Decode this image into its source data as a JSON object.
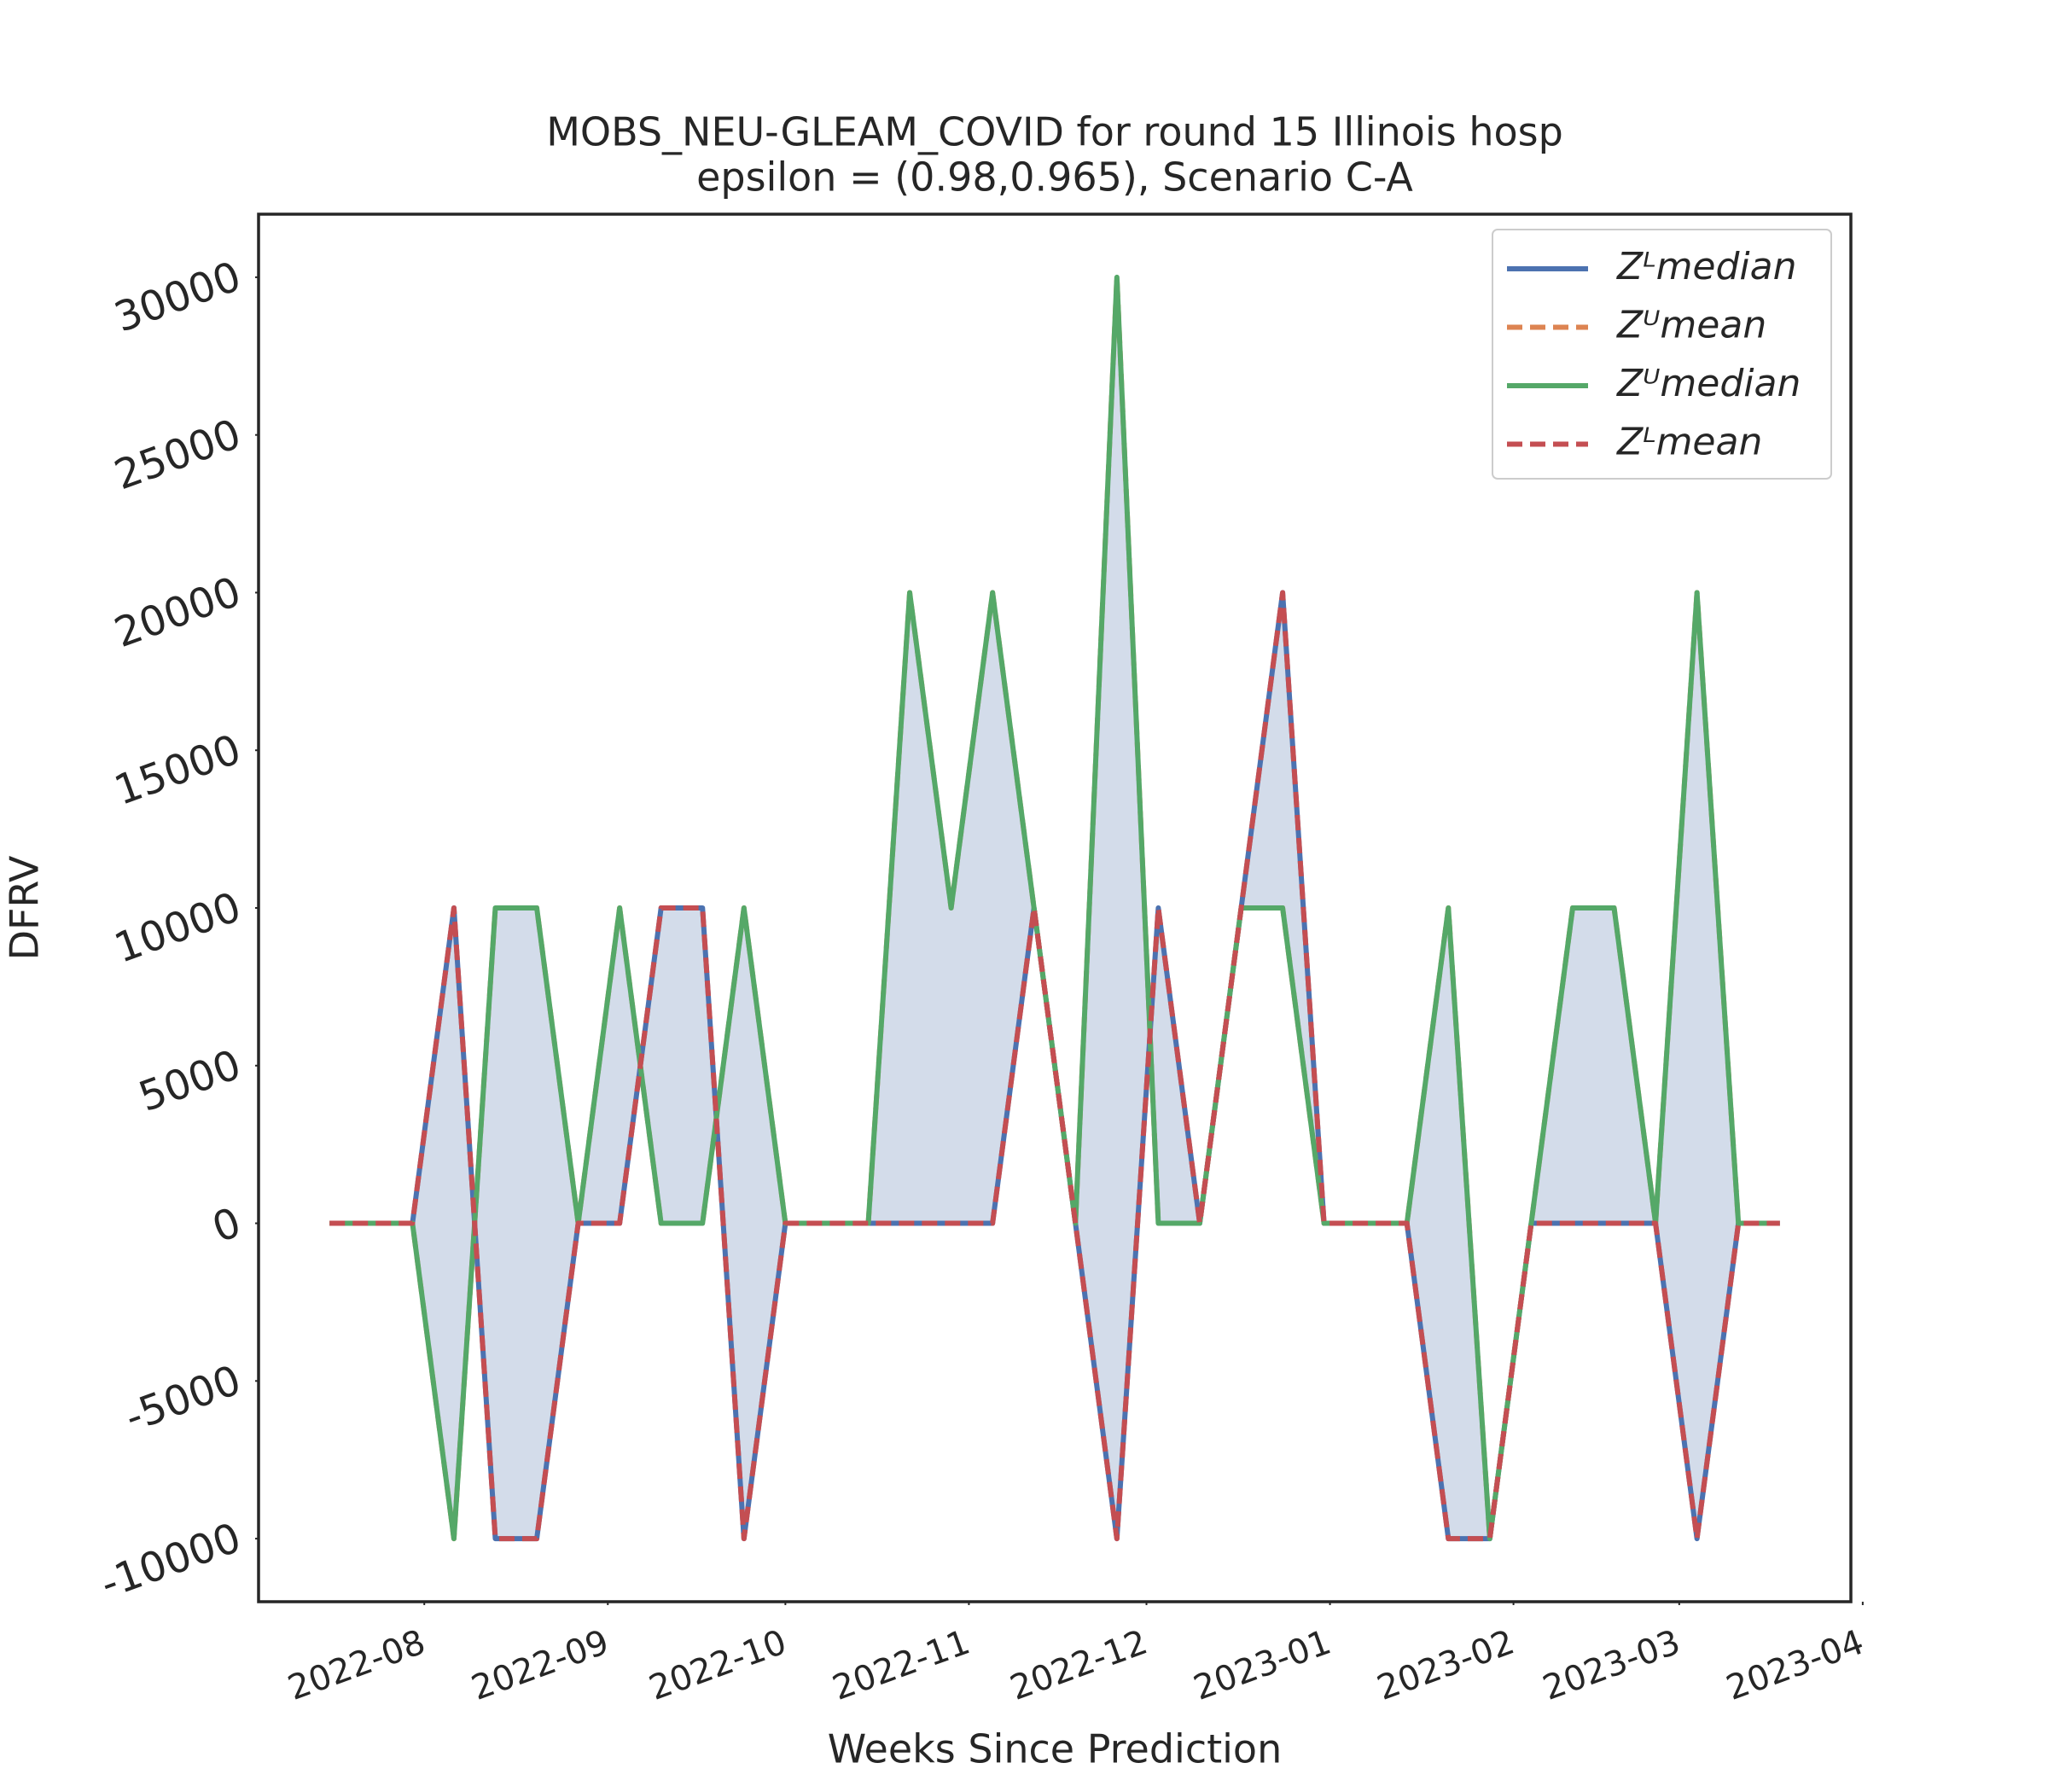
{
  "chart_data": {
    "type": "line",
    "title": "MOBS_NEU-GLEAM_COVID for round 15 Illinois  hosp",
    "subtitle": "epsilon = (0.98,0.965), Scenario C-A",
    "x_label": "Weeks Since Prediction",
    "y_label": "DFRV",
    "x": [
      "2022-07-16",
      "2022-07-23",
      "2022-07-30",
      "2022-08-06",
      "2022-08-13",
      "2022-08-20",
      "2022-08-27",
      "2022-09-03",
      "2022-09-10",
      "2022-09-17",
      "2022-09-24",
      "2022-10-01",
      "2022-10-08",
      "2022-10-15",
      "2022-10-22",
      "2022-10-29",
      "2022-11-05",
      "2022-11-12",
      "2022-11-19",
      "2022-11-26",
      "2022-12-03",
      "2022-12-10",
      "2022-12-17",
      "2022-12-24",
      "2022-12-31",
      "2023-01-07",
      "2023-01-14",
      "2023-01-21",
      "2023-01-28",
      "2023-02-04",
      "2023-02-11",
      "2023-02-18",
      "2023-02-25",
      "2023-03-04",
      "2023-03-11",
      "2023-03-18"
    ],
    "series": [
      {
        "name": "Zᴸmedian",
        "color": "#4c72b0",
        "dashed": false,
        "values": [
          0,
          0,
          0,
          10000,
          -10000,
          -10000,
          0,
          0,
          10000,
          10000,
          -10000,
          0,
          0,
          0,
          0,
          0,
          0,
          10000,
          0,
          -10000,
          10000,
          0,
          10000,
          20000,
          0,
          0,
          0,
          -10000,
          -10000,
          0,
          0,
          0,
          0,
          -10000,
          0,
          0
        ]
      },
      {
        "name": "Zᵁmean",
        "color": "#dd8452",
        "dashed": true,
        "values": [
          0,
          0,
          0,
          -10000,
          10000,
          10000,
          0,
          10000,
          0,
          0,
          10000,
          0,
          0,
          0,
          20000,
          10000,
          20000,
          10000,
          0,
          30000,
          0,
          0,
          10000,
          10000,
          0,
          0,
          0,
          10000,
          -10000,
          0,
          10000,
          10000,
          0,
          20000,
          0,
          0
        ]
      },
      {
        "name": "Zᵁmedian",
        "color": "#55a868",
        "dashed": false,
        "values": [
          0,
          0,
          0,
          -10000,
          10000,
          10000,
          0,
          10000,
          0,
          0,
          10000,
          0,
          0,
          0,
          20000,
          10000,
          20000,
          10000,
          0,
          30000,
          0,
          0,
          10000,
          10000,
          0,
          0,
          0,
          10000,
          -10000,
          0,
          10000,
          10000,
          0,
          20000,
          0,
          0
        ]
      },
      {
        "name": "Zᴸmean",
        "color": "#c44e52",
        "dashed": true,
        "values": [
          0,
          0,
          0,
          10000,
          -10000,
          -10000,
          0,
          0,
          10000,
          10000,
          -10000,
          0,
          0,
          0,
          0,
          0,
          0,
          10000,
          0,
          -10000,
          10000,
          0,
          10000,
          20000,
          0,
          0,
          0,
          -10000,
          -10000,
          0,
          0,
          0,
          0,
          -10000,
          0,
          0
        ]
      }
    ],
    "fill_color": "#d3dcea",
    "xlim": [
      "2022-07-04",
      "2023-03-30"
    ],
    "xticks": [
      "2022-08",
      "2022-09",
      "2022-10",
      "2022-11",
      "2022-12",
      "2023-01",
      "2023-02",
      "2023-03",
      "2023-04"
    ],
    "ylim": [
      -12000,
      32000
    ],
    "yticks": [
      -10000,
      -5000,
      0,
      5000,
      10000,
      15000,
      20000,
      25000,
      30000
    ],
    "grid": false,
    "legend": "upper right"
  }
}
